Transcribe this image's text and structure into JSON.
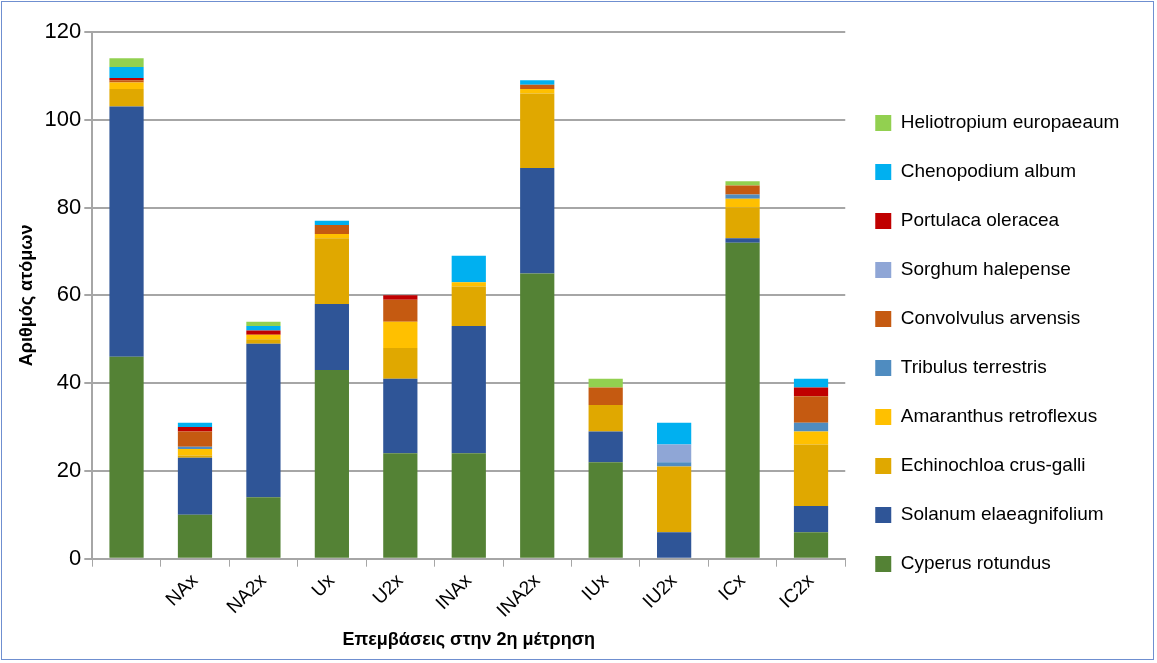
{
  "chart_data": {
    "type": "bar",
    "stacked": true,
    "xlabel": "Επεμβάσεις στην 2η μέτρηση",
    "ylabel": "Αριθμός ατόμων",
    "categories": [
      null,
      "NAx",
      "NA2x",
      "Ux",
      "U2x",
      "INAx",
      "INA2x",
      "IUx",
      "IU2x",
      "ICx",
      "IC2x"
    ],
    "ylim": [
      0,
      120
    ],
    "yticks": [
      0,
      20,
      40,
      60,
      80,
      100,
      120
    ],
    "grid": "y",
    "legend": "right",
    "series": [
      {
        "name": "Cyperus rotundus",
        "color": "#548235",
        "values": [
          46,
          10,
          14,
          43,
          24,
          24,
          65,
          22,
          0,
          72,
          6
        ]
      },
      {
        "name": "Solanum elaeagnifolium",
        "color": "#2f5597",
        "values": [
          57,
          13,
          35,
          15,
          17,
          29,
          24,
          7,
          6,
          1,
          6
        ]
      },
      {
        "name": "Echinochloa crus-galli",
        "color": "#e0a800",
        "values": [
          4,
          0.5,
          1,
          15,
          7,
          9,
          17,
          6,
          15,
          7,
          14
        ]
      },
      {
        "name": "Amaranthus retroflexus",
        "color": "#ffc000",
        "values": [
          1.5,
          1.5,
          1,
          1,
          6,
          1,
          1,
          0,
          0,
          2,
          3
        ]
      },
      {
        "name": "Tribulus terrestris",
        "color": "#4f8cc0",
        "values": [
          0,
          0.5,
          0,
          0,
          0,
          0,
          0,
          0,
          1,
          1,
          2
        ]
      },
      {
        "name": "Convolvulus arvensis",
        "color": "#c55a11",
        "values": [
          0.5,
          3.5,
          0,
          2,
          5,
          0,
          1,
          4,
          0,
          2,
          6
        ]
      },
      {
        "name": "Sorghum halepense",
        "color": "#8fa6d6",
        "values": [
          0,
          0,
          0,
          0,
          0,
          0,
          0,
          0,
          4,
          0,
          0
        ]
      },
      {
        "name": "Portulaca oleracea",
        "color": "#c00000",
        "values": [
          0.5,
          1,
          1,
          0,
          1,
          0,
          0,
          0,
          0,
          0,
          2
        ]
      },
      {
        "name": "Chenopodium album",
        "color": "#00b0f0",
        "values": [
          2.5,
          1,
          1,
          1,
          0,
          6,
          1,
          0,
          5,
          0,
          2
        ]
      },
      {
        "name": "Heliotropium europaeaum",
        "color": "#92d050",
        "values": [
          2,
          0,
          1,
          0,
          0,
          0,
          0,
          2,
          0,
          1,
          0
        ]
      }
    ]
  }
}
